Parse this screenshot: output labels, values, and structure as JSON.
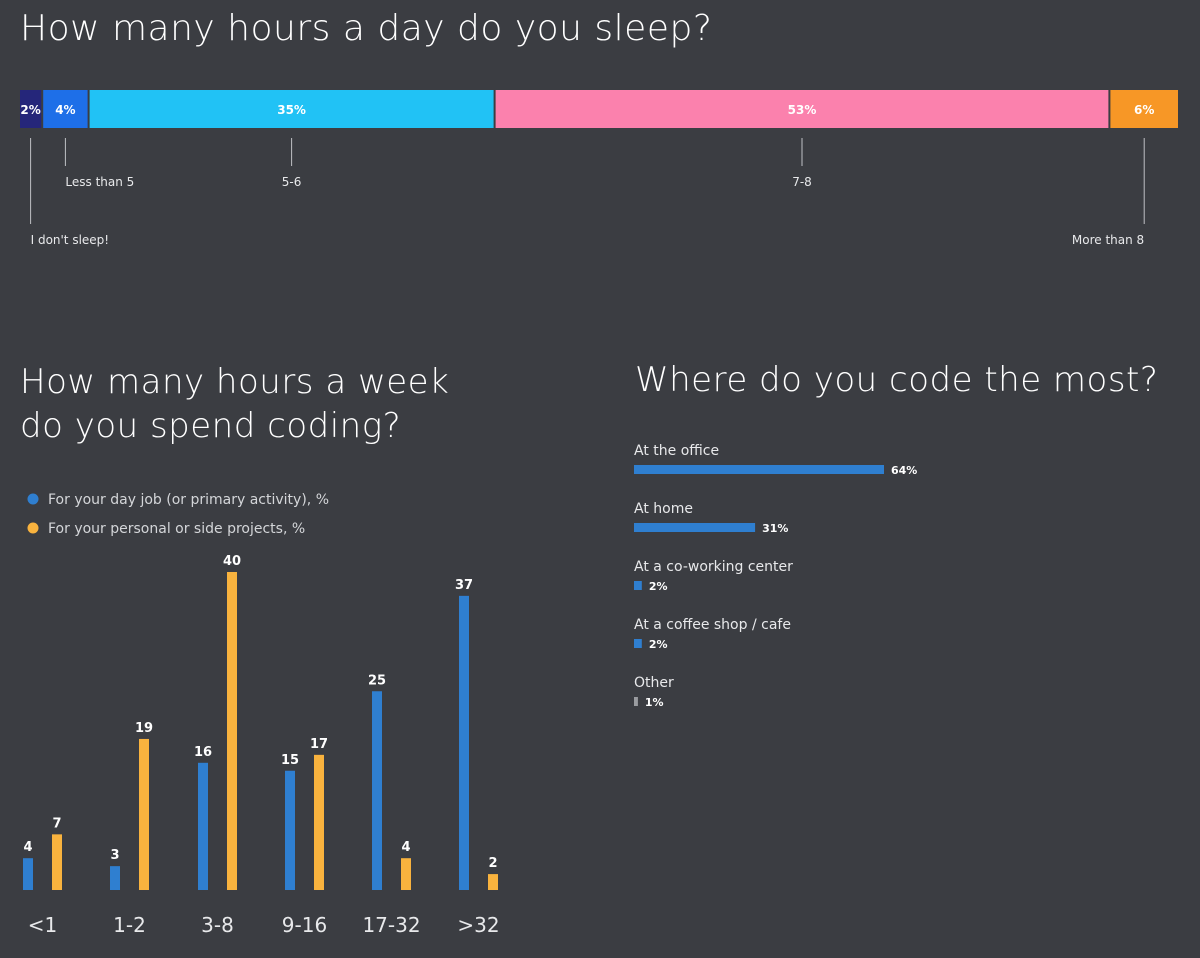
{
  "sleep": {
    "title": "How many hours a day do you sleep?",
    "segments": [
      {
        "value": 2,
        "label": "2%",
        "category": "I don't sleep!",
        "color": "#25267a",
        "row": 2
      },
      {
        "value": 4,
        "label": "4%",
        "category": "Less than 5",
        "color": "#1e6fe8",
        "row": 1
      },
      {
        "value": 35,
        "label": "35%",
        "category": "5-6",
        "color": "#21c2f5",
        "row": 1
      },
      {
        "value": 53,
        "label": "53%",
        "category": "7-8",
        "color": "#fb81ad",
        "row": 1
      },
      {
        "value": 6,
        "label": "6%",
        "category": "More than 8",
        "color": "#f79726",
        "row": 2
      }
    ]
  },
  "week": {
    "title_line1": "How many hours a week",
    "title_line2": "do you spend coding?",
    "legend": [
      {
        "label": "For your day job (or primary activity), %",
        "color": "#2f7fd0"
      },
      {
        "label": "For your personal or side projects, %",
        "color": "#f9b33e"
      }
    ]
  },
  "where": {
    "title": "Where do you code the most?",
    "items": [
      {
        "label": "At the office",
        "value": 64,
        "value_label": "64%",
        "color": "#2f7fd0"
      },
      {
        "label": "At home",
        "value": 31,
        "value_label": "31%",
        "color": "#2f7fd0"
      },
      {
        "label": "At a co-working center",
        "value": 2,
        "value_label": "2%",
        "color": "#2f7fd0"
      },
      {
        "label": "At a coffee shop / cafe",
        "value": 2,
        "value_label": "2%",
        "color": "#2f7fd0"
      },
      {
        "label": "Other",
        "value": 1,
        "value_label": "1%",
        "color": "#9a9ca0"
      }
    ]
  },
  "chart_data": [
    {
      "type": "bar",
      "orientation": "stacked-horizontal",
      "title": "How many hours a day do you sleep?",
      "categories": [
        "I don't sleep!",
        "Less than 5",
        "5-6",
        "7-8",
        "More than 8"
      ],
      "values": [
        2,
        4,
        35,
        53,
        6
      ]
    },
    {
      "type": "bar",
      "title": "How many hours a week do you spend coding?",
      "categories": [
        "<1",
        "1-2",
        "3-8",
        "9-16",
        "17-32",
        ">32"
      ],
      "series": [
        {
          "name": "For your day job (or primary activity), %",
          "values": [
            4,
            3,
            16,
            15,
            25,
            37
          ],
          "color": "#2f7fd0"
        },
        {
          "name": "For your personal or side projects, %",
          "values": [
            7,
            19,
            40,
            17,
            4,
            2
          ],
          "color": "#f9b33e"
        }
      ],
      "ylim": [
        0,
        40
      ]
    },
    {
      "type": "bar",
      "orientation": "horizontal",
      "title": "Where do you code the most?",
      "categories": [
        "At the office",
        "At home",
        "At a co-working center",
        "At a coffee shop / cafe",
        "Other"
      ],
      "values": [
        64,
        31,
        2,
        2,
        1
      ]
    }
  ]
}
